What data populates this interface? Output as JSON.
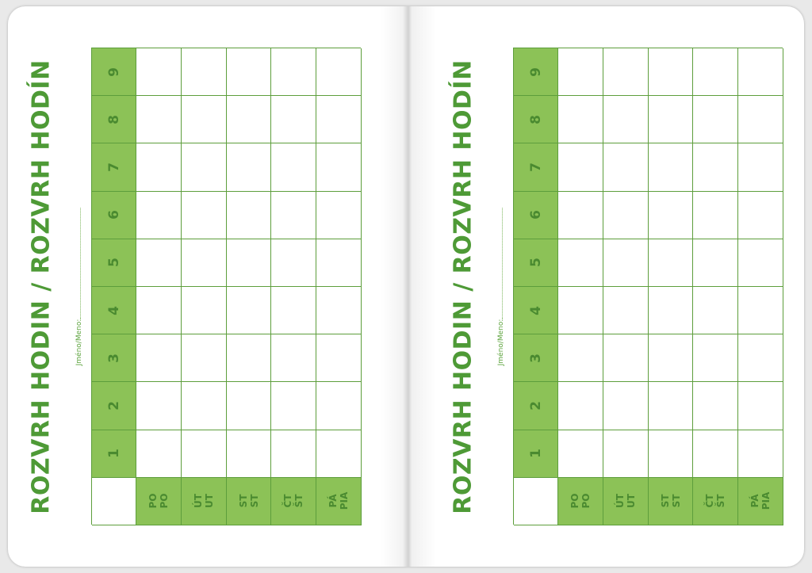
{
  "pages": [
    {
      "title": "ROZVRH HODIN / ROZVRH HODÍN",
      "name_label": "Jméno/Meno:",
      "periods": [
        "1",
        "2",
        "3",
        "4",
        "5",
        "6",
        "7",
        "8",
        "9"
      ],
      "days": [
        [
          "PO",
          "PO"
        ],
        [
          "ÚT",
          "UT"
        ],
        [
          "ST",
          "ST"
        ],
        [
          "ČT",
          "ŠT"
        ],
        [
          "PÁ",
          "PIA"
        ]
      ]
    },
    {
      "title": "ROZVRH HODIN / ROZVRH HODÍN",
      "name_label": "Jméno/Meno:",
      "periods": [
        "1",
        "2",
        "3",
        "4",
        "5",
        "6",
        "7",
        "8",
        "9"
      ],
      "days": [
        [
          "PO",
          "PO"
        ],
        [
          "ÚT",
          "UT"
        ],
        [
          "ST",
          "ST"
        ],
        [
          "ČT",
          "ŠT"
        ],
        [
          "PÁ",
          "PIA"
        ]
      ]
    }
  ],
  "colors": {
    "title": "#4e9a36",
    "header_fill": "#8cc257",
    "grid_line": "#5d9e3c"
  }
}
